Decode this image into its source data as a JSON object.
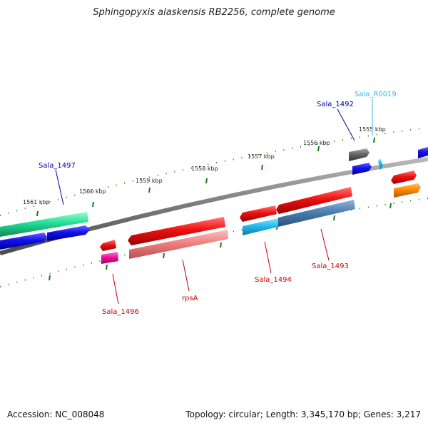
{
  "title": "Sphingopyxis alaskensis RB2256, complete genome",
  "footer": {
    "accession": "Accession: NC_008048",
    "topology": "Topology: circular; Length: 3,345,170 bp; Genes: 3,217"
  },
  "kbp_labels": [
    "1555 kbp",
    "1556 kbp",
    "1557 kbp",
    "1558 kbp",
    "1559 kbp",
    "1560 kbp",
    "1561 kbp"
  ],
  "gene_labels": [
    {
      "name": "Sala_R0019",
      "color": "#33bbdd"
    },
    {
      "name": "Sala_1492",
      "color": "#0000aa"
    },
    {
      "name": "Sala_1497",
      "color": "#0000aa"
    },
    {
      "name": "Sala_1496",
      "color": "#cc0000"
    },
    {
      "name": "rpsA",
      "color": "#cc0000"
    },
    {
      "name": "Sala_1494",
      "color": "#cc0000"
    },
    {
      "name": "Sala_1493",
      "color": "#cc0000"
    }
  ],
  "colors": {
    "backbone": "#7a7a7a",
    "tick": "#1a7a1a",
    "cds_red": "#ee1111",
    "cds_blue": "#1111ee",
    "green": "#22dd99",
    "light_blue": "#22bbee",
    "steel_blue": "#4a7fb0",
    "salmon": "#f08080",
    "magenta": "#ee1199",
    "gray": "#666666",
    "orange": "#ff8800"
  }
}
